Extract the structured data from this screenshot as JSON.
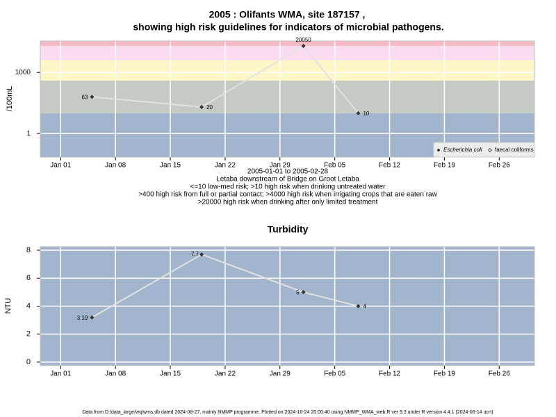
{
  "chart_data": [
    {
      "type": "line",
      "title": [
        "2005 : Olifants WMA, site 187157 ,",
        "showing high risk guidelines for indicators of microbial pathogens."
      ],
      "subtitle": [
        "2005-01-01 to 2005-02-28",
        "Letaba downstream of Bridge on Groot Letaba",
        "<=10 low-med risk; >10 high risk when drinking untreated water",
        ">400 high risk from full or partial contact; >4000 high risk when irrigating crops that are eaten raw",
        ">20000 high risk when drinking after only limited treatment"
      ],
      "ylabel": "/100mL",
      "x": [
        5,
        19,
        32,
        39
      ],
      "series": [
        {
          "name": "Escherichia coli",
          "color": "#333333",
          "values": [
            63,
            20,
            20050,
            10
          ]
        },
        {
          "name": "faecal coliforms",
          "color": "#333333",
          "values": [
            null,
            null,
            null,
            null
          ]
        }
      ],
      "log_scale": true,
      "xlim": [
        -1.6,
        61.5
      ],
      "xticks": [
        {
          "value": 1,
          "label": "Jan 01"
        },
        {
          "value": 8,
          "label": "Jan 08"
        },
        {
          "value": 15,
          "label": "Jan 15"
        },
        {
          "value": 22,
          "label": "Jan 22"
        },
        {
          "value": 29,
          "label": "Jan 29"
        },
        {
          "value": 36,
          "label": "Feb 05"
        },
        {
          "value": 43,
          "label": "Feb 12"
        },
        {
          "value": 50,
          "label": "Feb 19"
        },
        {
          "value": 57,
          "label": "Feb 26"
        }
      ],
      "ylim": [
        0.07,
        35000
      ],
      "yticks": [
        1,
        1000
      ],
      "bands": [
        {
          "from": 0.07,
          "to": 10,
          "color": "#a2b5cc"
        },
        {
          "from": 10,
          "to": 400,
          "color": "#c4cbc2"
        },
        {
          "from": 400,
          "to": 4000,
          "color": "#fdf6c6"
        },
        {
          "from": 4000,
          "to": 20000,
          "color": "#fbdcef"
        },
        {
          "from": 20000,
          "to": 35000,
          "color": "#f6b9c8"
        }
      ],
      "grid": true,
      "legend": "bottom-right"
    },
    {
      "type": "line",
      "title": "Turbidity",
      "ylabel": "NTU",
      "x": [
        5,
        19,
        32,
        39
      ],
      "series": [
        {
          "color": "#333333",
          "values": [
            3.19,
            7.7,
            5,
            4
          ]
        }
      ],
      "xlim": [
        -1.6,
        61.5
      ],
      "xticks": [
        {
          "value": 1,
          "label": "Jan 01"
        },
        {
          "value": 8,
          "label": "Jan 08"
        },
        {
          "value": 15,
          "label": "Jan 15"
        },
        {
          "value": 22,
          "label": "Jan 22"
        },
        {
          "value": 29,
          "label": "Jan 29"
        },
        {
          "value": 36,
          "label": "Feb 05"
        },
        {
          "value": 43,
          "label": "Feb 12"
        },
        {
          "value": 50,
          "label": "Feb 19"
        },
        {
          "value": 57,
          "label": "Feb 26"
        }
      ],
      "ylim": [
        -0.25,
        8.25
      ],
      "yticks": [
        0,
        2,
        4,
        6,
        8
      ],
      "background": "#a2b5cc",
      "grid": true
    }
  ],
  "footer": "Data from D:/data_large/wq/wms.db dated 2024-08-27, mainly NMMP programme. Plotted on 2024-10-24 20:00:40 using NMMP_WMA_web.R ver 9.3 under R version 4.4.1 (2024-06-14 ucrt)"
}
